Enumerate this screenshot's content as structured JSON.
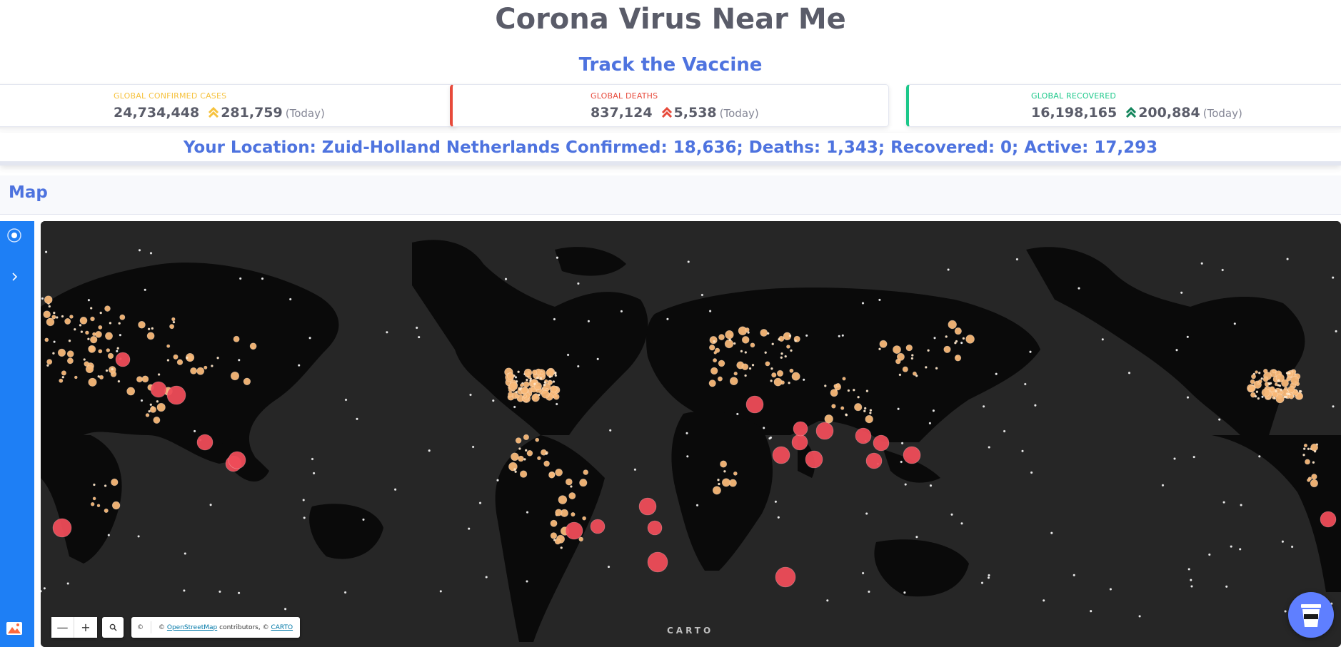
{
  "header": {
    "title": "Corona Virus Near Me",
    "vaccine_link": "Track the Vaccine"
  },
  "stats": {
    "confirmed": {
      "label": "GLOBAL CONFIRMED CASES",
      "total": "24,734,448",
      "today": "281,759",
      "today_suffix": "(Today)",
      "color": "#f6c23e"
    },
    "deaths": {
      "label": "GLOBAL DEATHS",
      "total": "837,124",
      "today": "5,538",
      "today_suffix": "(Today)",
      "color": "#e74a3b"
    },
    "recovered": {
      "label": "GLOBAL RECOVERED",
      "total": "16,198,165",
      "today": "200,884",
      "today_suffix": "(Today)",
      "color": "#1cc88a"
    }
  },
  "location": {
    "text": "Your Location: Zuid-Holland Netherlands Confirmed: 18,636; Deaths: 1,343; Recovered: 0; Active: 17,293"
  },
  "map_section": {
    "title": "Map",
    "controls": {
      "zoom_out": "—",
      "zoom_in": "+",
      "attribution_symbol": "©",
      "attribution_prefix": "©",
      "attribution_link1": "OpenStreetMap",
      "attribution_mid": "contributors, ©",
      "attribution_link2": "CARTO"
    },
    "basemap_logo": "CARTO",
    "icons": [
      "locate-icon",
      "expand-chevron-icon",
      "basemap-icon",
      "search-icon",
      "coffee-cup-icon"
    ]
  },
  "colors": {
    "accent": "#4e73df",
    "sidebar": "#1e7ff5",
    "map_background": "#262626",
    "land": "#0a0a0a",
    "bubble_low": "#f8b878",
    "bubble_high": "#ee4c58"
  }
}
